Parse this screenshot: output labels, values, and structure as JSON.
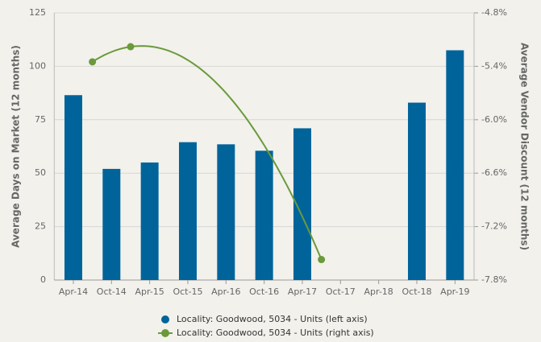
{
  "chart_data": {
    "type": "bar",
    "categories": [
      "Apr-14",
      "Oct-14",
      "Apr-15",
      "Oct-15",
      "Apr-16",
      "Oct-16",
      "Apr-17",
      "Oct-17",
      "Apr-18",
      "Oct-18",
      "Apr-19"
    ],
    "series": [
      {
        "name": "Locality: Goodwood, 5034 - Units (left axis)",
        "color": "#00649b",
        "type": "bar",
        "values": [
          86.5,
          52,
          55,
          64.5,
          63.5,
          60.5,
          71,
          null,
          null,
          83,
          107.5
        ]
      },
      {
        "name": "Locality: Goodwood, 5034 - Units (right axis)",
        "color": "#6a9a3a",
        "type": "line",
        "axis": "y2",
        "connect_nulls": true,
        "values": [
          -5.35,
          -5.18,
          null,
          null,
          null,
          null,
          -7.57,
          null,
          null,
          null,
          null
        ]
      }
    ],
    "ylabel": "Average Days on Market (12 months)",
    "y2label": "Average Vendor Discount (12 months)",
    "ylim": [
      0,
      125
    ],
    "yticks": [
      0,
      25,
      50,
      75,
      100,
      125
    ],
    "y2lim": [
      -7.8,
      -4.8
    ],
    "y2ticks": [
      {
        "value": -4.8,
        "label": "-4.8%"
      },
      {
        "value": -5.4,
        "label": "-5.4%"
      },
      {
        "value": -6.0,
        "label": "-6.0%"
      },
      {
        "value": -6.6,
        "label": "-6.6%"
      },
      {
        "value": -7.2,
        "label": "-7.2%"
      },
      {
        "value": -7.8,
        "label": "-7.8%"
      }
    ],
    "grid": true,
    "legend": "bottom"
  }
}
